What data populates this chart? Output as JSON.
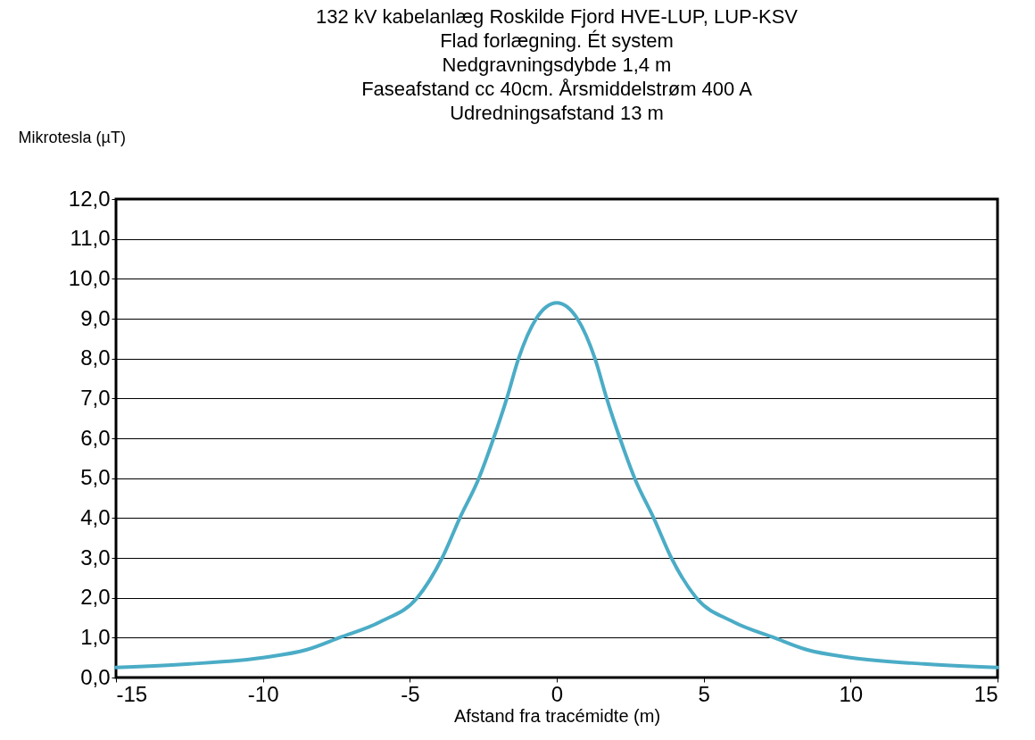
{
  "chart_data": {
    "type": "line",
    "title": [
      "132 kV kabelanlæg Roskilde Fjord HVE-LUP, LUP-KSV",
      "Flad forlægning. Ét system",
      "Nedgravningsdybde 1,4 m",
      "Faseafstand cc 40cm. Årsmiddelstrøm 400 A",
      "Udredningsafstand 13 m"
    ],
    "xlabel": "Afstand fra tracémidte (m)",
    "ylabel": "Mikrotesla (µT)",
    "x": [
      -15,
      -12.5,
      -10,
      -8.5,
      -7.4,
      -6,
      -4.75,
      -3.9,
      -3.3,
      -2.65,
      -2.15,
      -1.7,
      -1.3,
      -0.7,
      -0.35,
      0,
      0.35,
      0.7,
      1.3,
      1.7,
      2.15,
      2.65,
      3.3,
      3.9,
      4.75,
      6,
      7.4,
      8.5,
      10,
      12.5,
      15
    ],
    "series": [
      {
        "color": "#4bacc6",
        "values": [
          0.25,
          0.34,
          0.5,
          0.7,
          1.0,
          1.4,
          2.0,
          3.0,
          4.0,
          5.0,
          6.0,
          7.0,
          8.0,
          9.0,
          9.3,
          9.4,
          9.3,
          9.0,
          8.0,
          7.0,
          6.0,
          5.0,
          4.0,
          3.0,
          2.0,
          1.4,
          1.0,
          0.7,
          0.5,
          0.34,
          0.25
        ]
      }
    ],
    "xlim": [
      -15,
      15
    ],
    "xticks": [
      -15,
      -10,
      -5,
      0,
      5,
      10,
      15
    ],
    "ylim": [
      0,
      12
    ],
    "yticks": [
      {
        "value": 0,
        "label": "0,0"
      },
      {
        "value": 1,
        "label": "1,0"
      },
      {
        "value": 2,
        "label": "2,0"
      },
      {
        "value": 3,
        "label": "3,0"
      },
      {
        "value": 4,
        "label": "4,0"
      },
      {
        "value": 5,
        "label": "5,0"
      },
      {
        "value": 6,
        "label": "6,0"
      },
      {
        "value": 7,
        "label": "7,0"
      },
      {
        "value": 8,
        "label": "8,0"
      },
      {
        "value": 9,
        "label": "9,0"
      },
      {
        "value": 10,
        "label": "10,0"
      },
      {
        "value": 11,
        "label": "11,0"
      },
      {
        "value": 12,
        "label": "12,0"
      }
    ],
    "grid": "y",
    "legend": false,
    "marker": "none",
    "line_style": "solid"
  }
}
